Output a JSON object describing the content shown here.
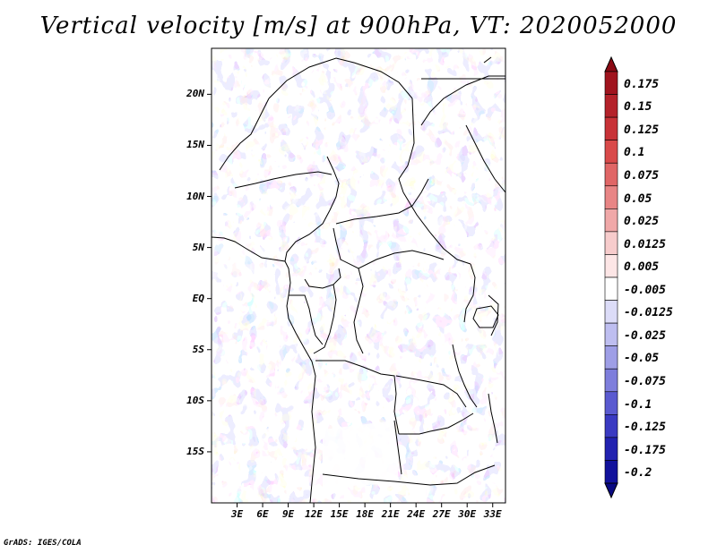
{
  "title": "Vertical velocity [m/s] at 900hPa, VT: 2020052000",
  "credit": "GrADS: IGES/COLA",
  "map": {
    "lat_labels": [
      "20N",
      "15N",
      "10N",
      "5N",
      "EQ",
      "5S",
      "10S",
      "15S"
    ],
    "lat_values": [
      20,
      15,
      10,
      5,
      0,
      -5,
      -10,
      -15
    ],
    "lon_labels": [
      "3E",
      "6E",
      "9E",
      "12E",
      "15E",
      "18E",
      "21E",
      "24E",
      "27E",
      "30E",
      "33E"
    ],
    "lon_values": [
      3,
      6,
      9,
      12,
      15,
      18,
      21,
      24,
      27,
      30,
      33
    ],
    "lat_range": [
      -20,
      24.5
    ],
    "lon_range": [
      0,
      34.5
    ]
  },
  "colorbar": {
    "labels": [
      "0.175",
      "0.15",
      "0.125",
      "0.1",
      "0.075",
      "0.05",
      "0.025",
      "0.0125",
      "0.005",
      "-0.005",
      "-0.0125",
      "-0.025",
      "-0.05",
      "-0.075",
      "-0.1",
      "-0.125",
      "-0.175",
      "-0.2"
    ],
    "colors": [
      "#a0141e",
      "#b4222a",
      "#c83237",
      "#d94a4a",
      "#e06666",
      "#e88585",
      "#f0a8a8",
      "#f7cccc",
      "#fde6e6",
      "#ffffff",
      "#dcdcf8",
      "#bebef0",
      "#9e9ee6",
      "#7e7edc",
      "#5a5ad0",
      "#3a3ac2",
      "#2222b0",
      "#12129c"
    ],
    "top_color": "#8b0a14",
    "bottom_color": "#0a0a82"
  },
  "colors": {
    "frame": "#000000",
    "background": "#ffffff"
  }
}
